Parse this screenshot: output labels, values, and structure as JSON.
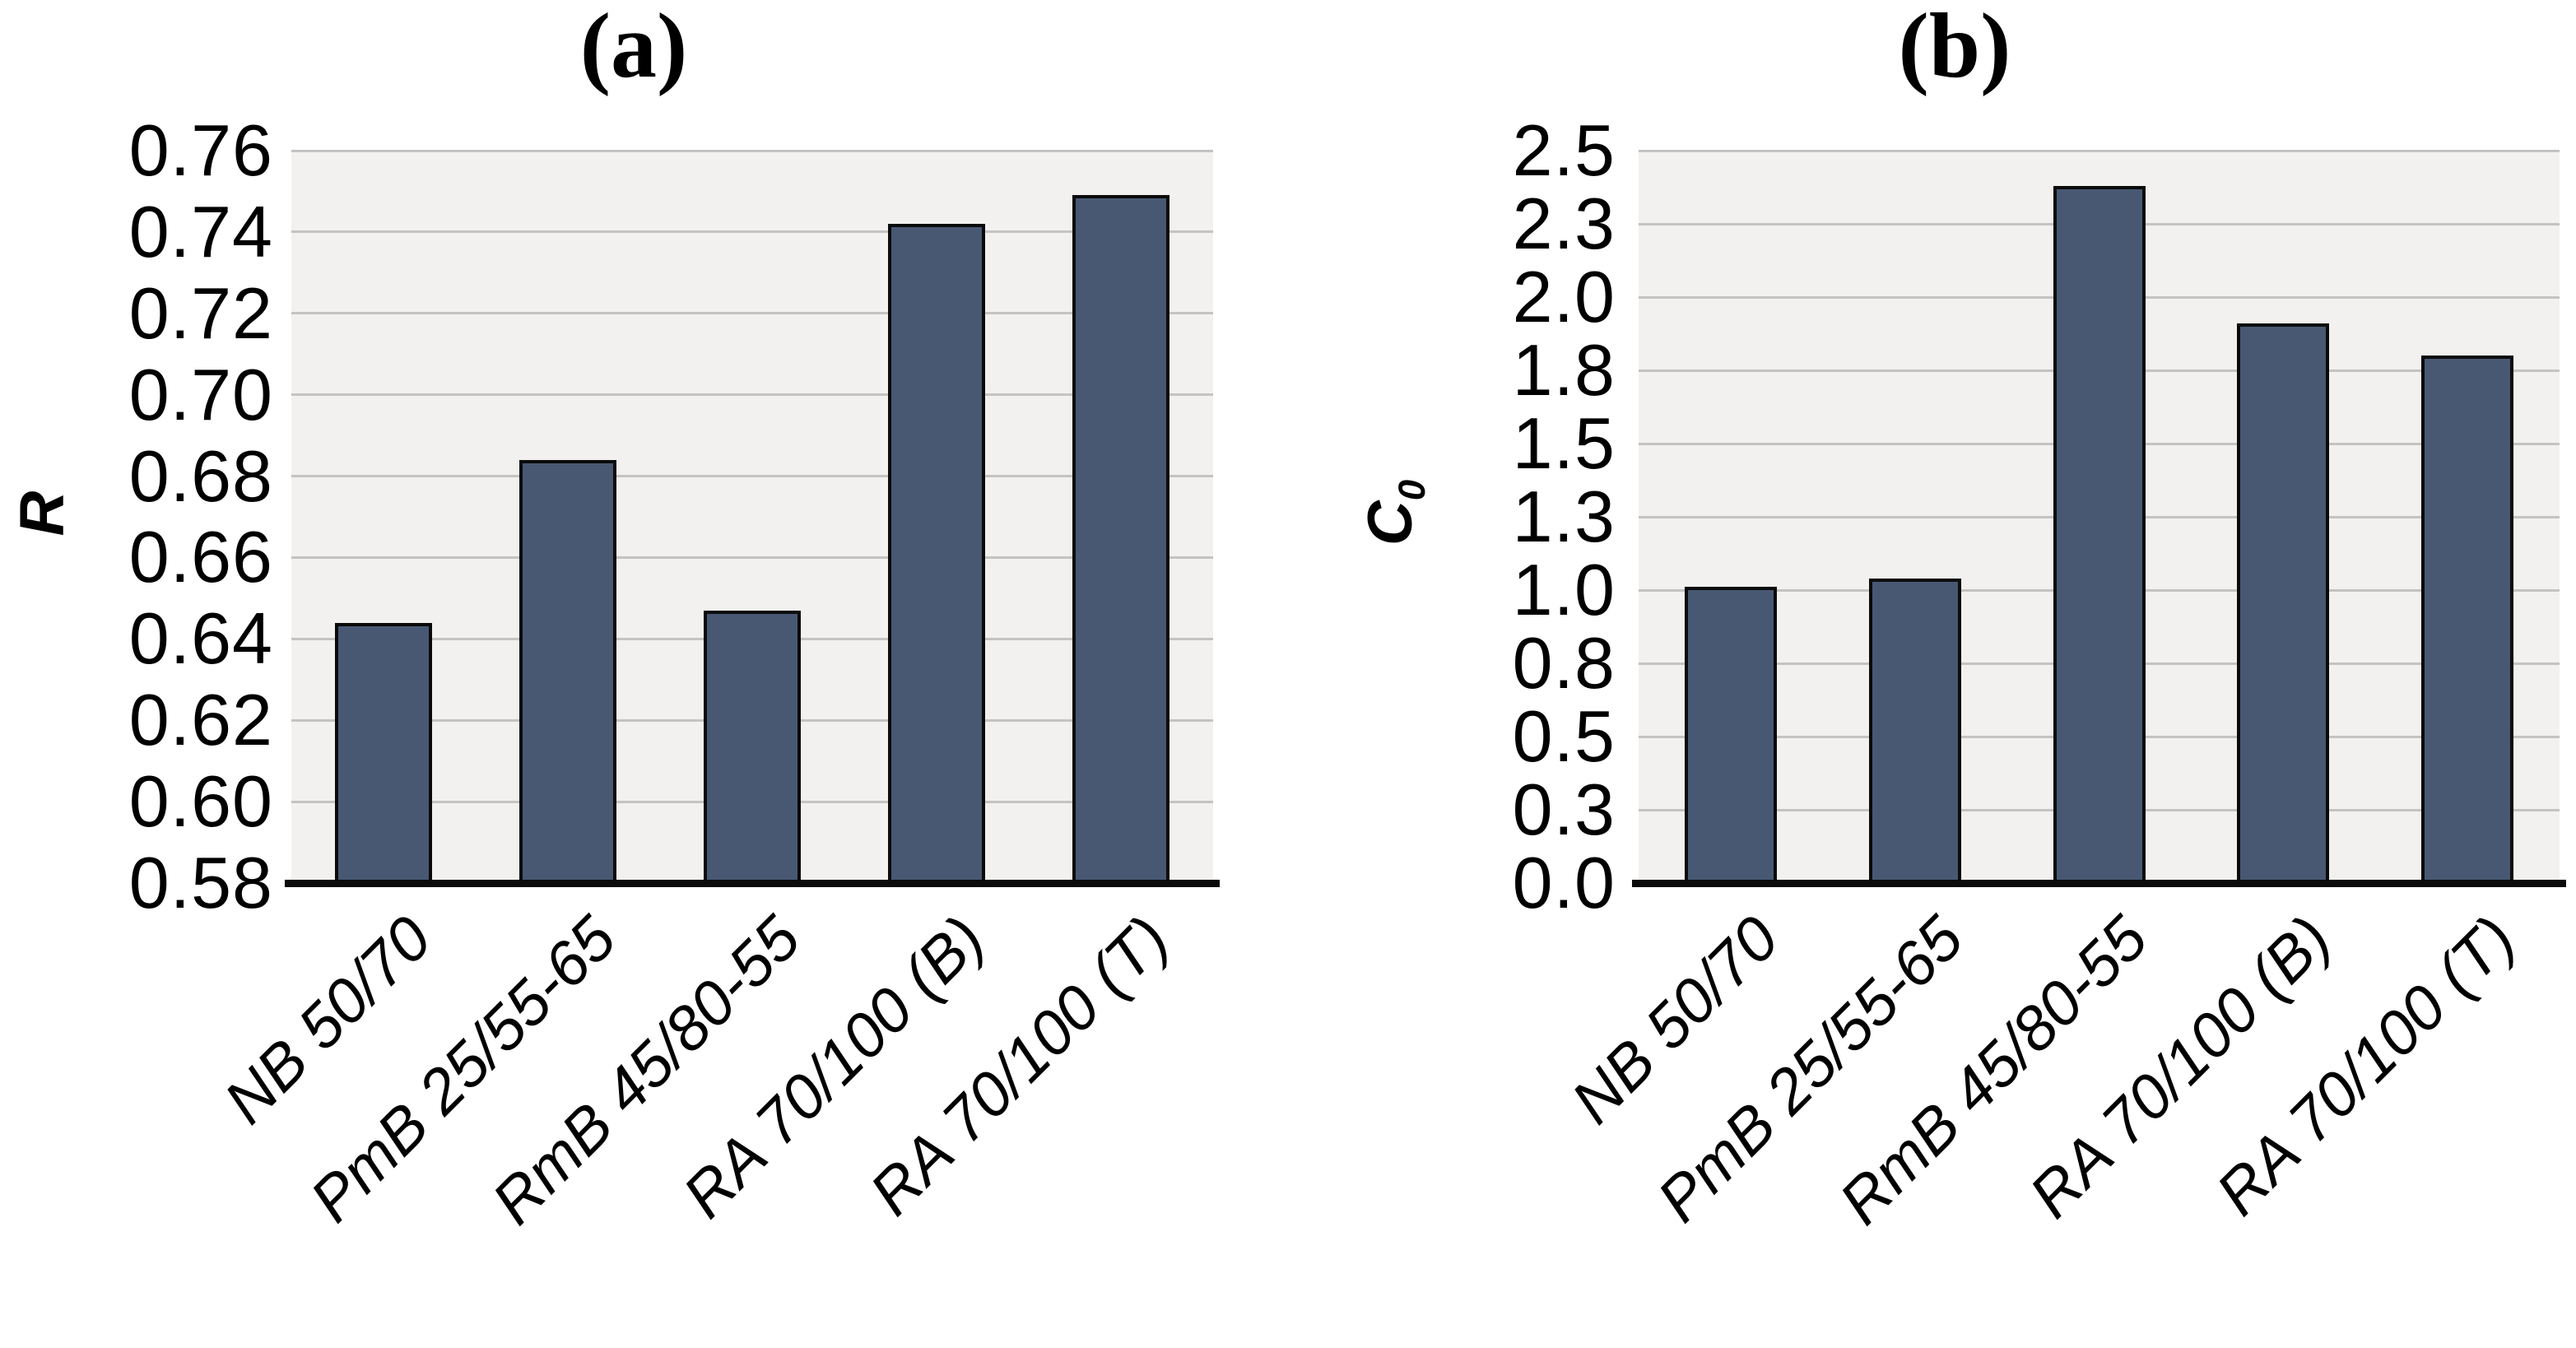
{
  "figure": {
    "panels": [
      {
        "title": "(a)",
        "ylabel_base": "R",
        "ylabel_sub": ""
      },
      {
        "title": "(b)",
        "ylabel_base": "C",
        "ylabel_sub": "0"
      }
    ]
  },
  "chart_data": [
    {
      "type": "bar",
      "title": "(a)",
      "ylabel": "R",
      "xlabel": "",
      "categories": [
        "NB 50/70",
        "PmB 25/55-65",
        "RmB 45/80-55",
        "RA 70/100 (B)",
        "RA 70/100 (T)"
      ],
      "values": [
        0.644,
        0.684,
        0.647,
        0.742,
        0.749
      ],
      "ylim": [
        0.58,
        0.76
      ],
      "yticks": [
        {
          "label": "0.58",
          "value": 0.58
        },
        {
          "label": "0.60",
          "value": 0.6
        },
        {
          "label": "0.62",
          "value": 0.62
        },
        {
          "label": "0.64",
          "value": 0.64
        },
        {
          "label": "0.66",
          "value": 0.66
        },
        {
          "label": "0.68",
          "value": 0.68
        },
        {
          "label": "0.70",
          "value": 0.7
        },
        {
          "label": "0.72",
          "value": 0.72
        },
        {
          "label": "0.74",
          "value": 0.74
        },
        {
          "label": "0.76",
          "value": 0.76
        }
      ],
      "grid": true,
      "legend": false
    },
    {
      "type": "bar",
      "title": "(b)",
      "ylabel": "C0",
      "xlabel": "",
      "categories": [
        "NB 50/70",
        "PmB 25/55-65",
        "RmB 45/80-55",
        "RA 70/100 (B)",
        "RA 70/100 (T)"
      ],
      "values": [
        1.01,
        1.04,
        2.38,
        1.91,
        1.8
      ],
      "ylim": [
        0,
        2.5
      ],
      "yticks": [
        {
          "label": "0.0",
          "value": 0
        },
        {
          "label": "0.3",
          "value": 0.25
        },
        {
          "label": "0.5",
          "value": 0.5
        },
        {
          "label": "0.8",
          "value": 0.75
        },
        {
          "label": "1.0",
          "value": 1.0
        },
        {
          "label": "1.3",
          "value": 1.25
        },
        {
          "label": "1.5",
          "value": 1.5
        },
        {
          "label": "1.8",
          "value": 1.75
        },
        {
          "label": "2.0",
          "value": 2.0
        },
        {
          "label": "2.3",
          "value": 2.25
        },
        {
          "label": "2.5",
          "value": 2.5
        }
      ],
      "grid": true,
      "legend": false
    }
  ],
  "colors": {
    "bar_fill": "#485873",
    "bar_stroke": "#0b0b0b",
    "plot_bg": "#f2f1f0",
    "gridline": "#c4c3c1",
    "axis_line": "#0a0a0a",
    "text": "#000000"
  }
}
